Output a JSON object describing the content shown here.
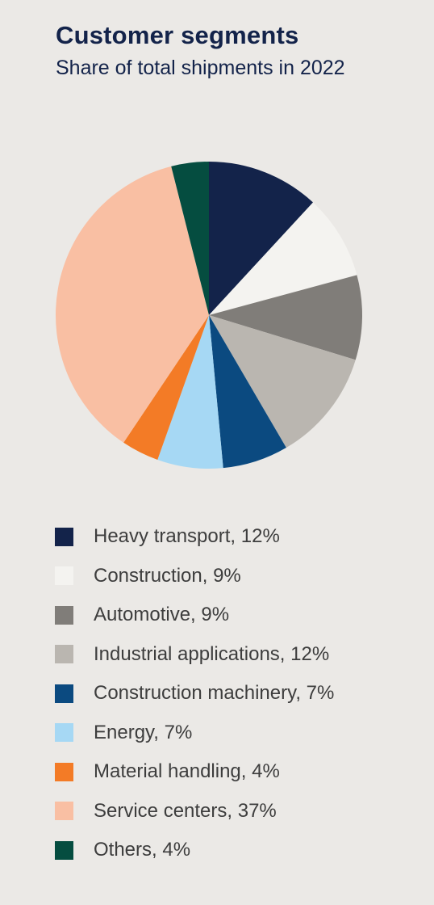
{
  "title": "Customer segments",
  "subtitle": "Share of total shipments in 2022",
  "chart_data": {
    "type": "pie",
    "title": "Customer segments",
    "subtitle": "Share of total shipments in 2022",
    "unit": "%",
    "legend_position": "bottom",
    "slices": [
      {
        "label": "Heavy transport",
        "value": 12,
        "color": "#13234a"
      },
      {
        "label": "Construction",
        "value": 9,
        "color": "#f4f3f0"
      },
      {
        "label": "Automotive",
        "value": 9,
        "color": "#807d79"
      },
      {
        "label": "Industrial applications",
        "value": 12,
        "color": "#bab6b0"
      },
      {
        "label": "Construction machinery",
        "value": 7,
        "color": "#0b4a80"
      },
      {
        "label": "Energy",
        "value": 7,
        "color": "#a6d8f4"
      },
      {
        "label": "Material handling",
        "value": 4,
        "color": "#f37b26"
      },
      {
        "label": "Service centers",
        "value": 37,
        "color": "#f9bfa3"
      },
      {
        "label": "Others",
        "value": 4,
        "color": "#054d40"
      }
    ]
  },
  "legend": [
    {
      "text": "Heavy transport, 12%",
      "color": "#13234a"
    },
    {
      "text": "Construction, 9%",
      "color": "#f4f3f0"
    },
    {
      "text": "Automotive, 9%",
      "color": "#807d79"
    },
    {
      "text": "Industrial applications, 12%",
      "color": "#bab6b0"
    },
    {
      "text": "Construction machinery, 7%",
      "color": "#0b4a80"
    },
    {
      "text": "Energy, 7%",
      "color": "#a6d8f4"
    },
    {
      "text": "Material handling, 4%",
      "color": "#f37b26"
    },
    {
      "text": "Service centers, 37%",
      "color": "#f9bfa3"
    },
    {
      "text": "Others, 4%",
      "color": "#054d40"
    }
  ]
}
